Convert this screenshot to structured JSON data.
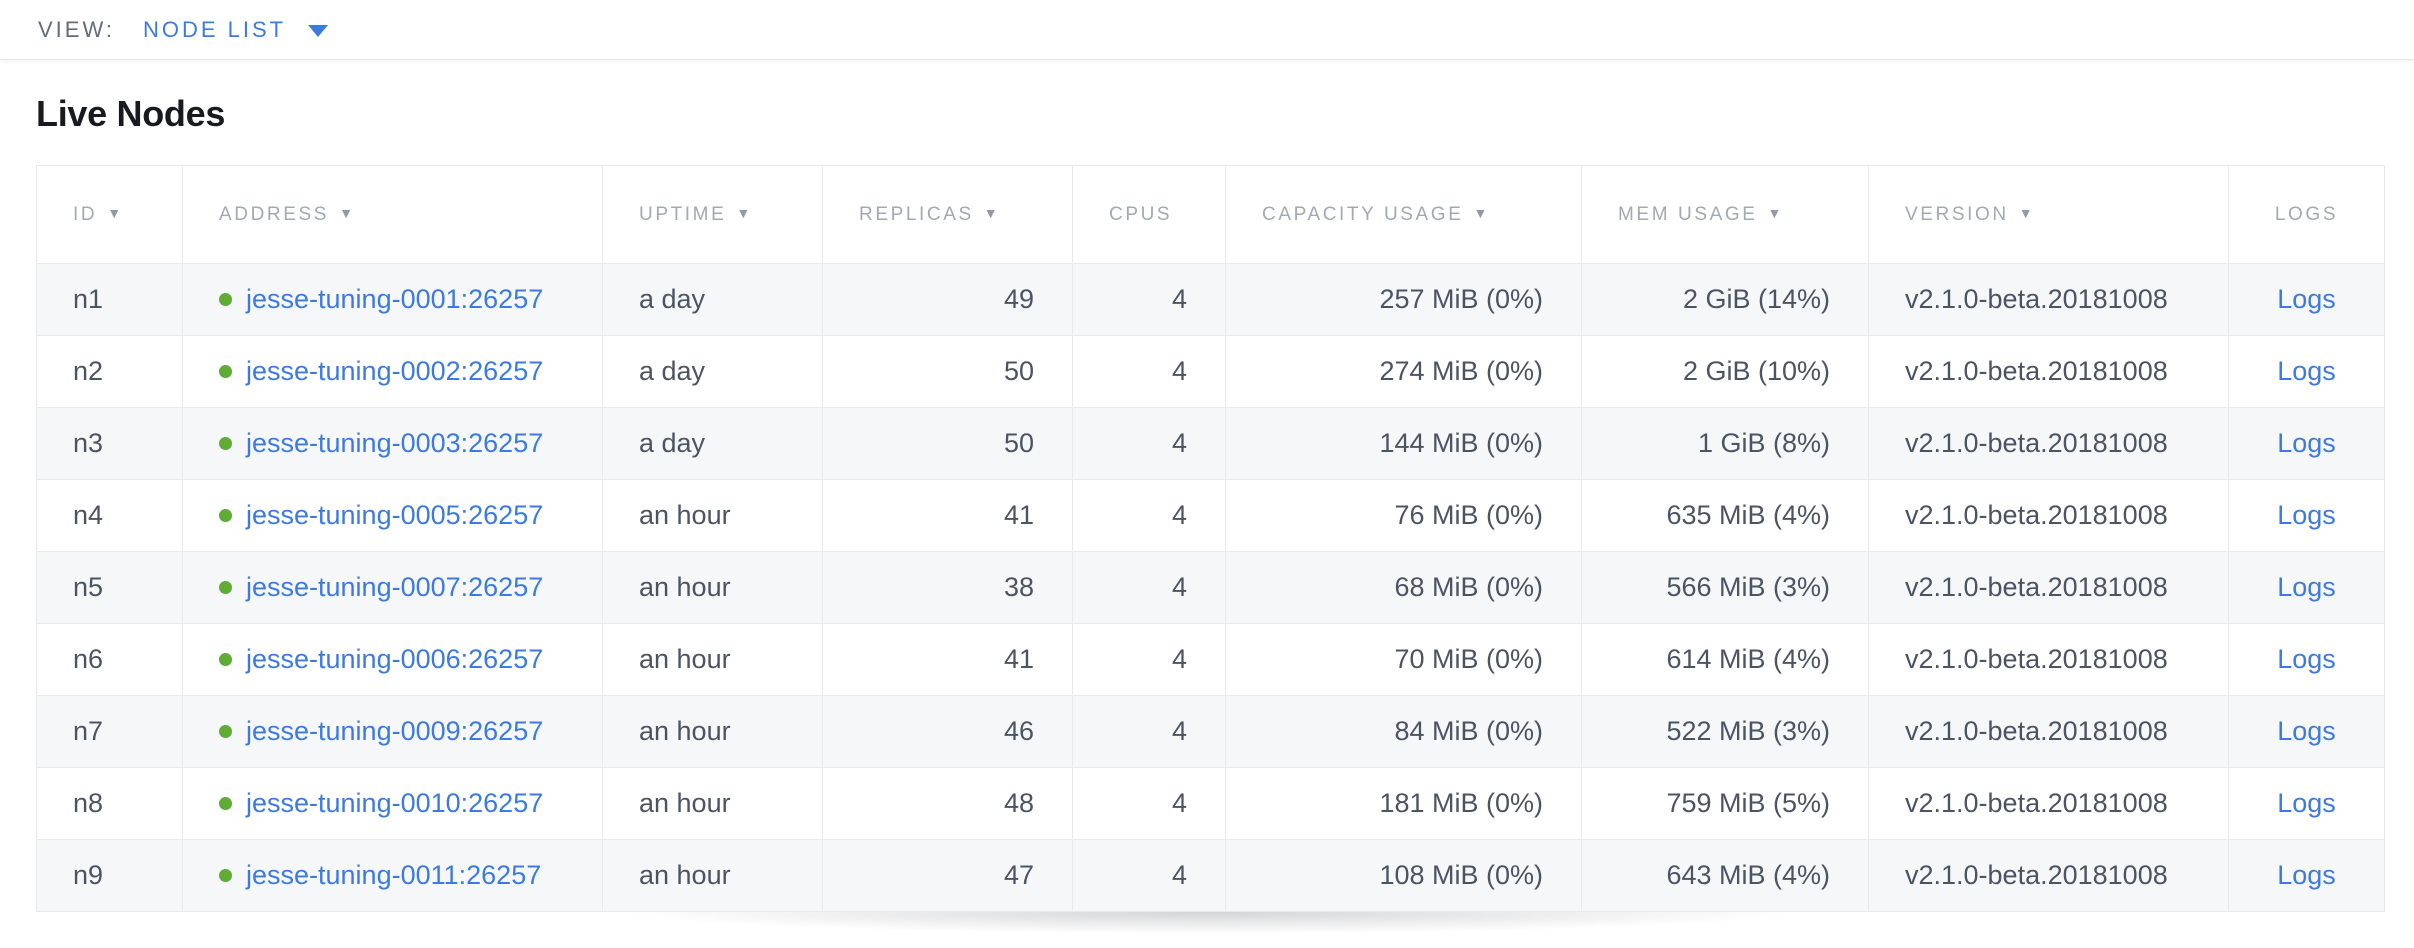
{
  "view_bar": {
    "label": "VIEW:",
    "selected": "NODE LIST"
  },
  "page": {
    "title": "Live Nodes"
  },
  "icons": {
    "sort_desc": "▼",
    "view_caret": "caret-down-icon",
    "node_status": "status-dot-icon"
  },
  "colors": {
    "accent_blue": "#3d7ae0",
    "link_blue": "#3d7ae0",
    "status_green": "#5eab36",
    "header_gray": "#a2a9b4",
    "cell_text": "#4c5464",
    "zebra_row": "#f6f7f8",
    "border": "#e9eaec"
  },
  "table": {
    "columns": [
      {
        "key": "id",
        "label": "ID",
        "sortable": true,
        "cell_align": "left"
      },
      {
        "key": "address",
        "label": "ADDRESS",
        "sortable": true,
        "cell_align": "left"
      },
      {
        "key": "uptime",
        "label": "UPTIME",
        "sortable": true,
        "cell_align": "left"
      },
      {
        "key": "replicas",
        "label": "REPLICAS",
        "sortable": true,
        "cell_align": "right"
      },
      {
        "key": "cpus",
        "label": "CPUS",
        "sortable": false,
        "cell_align": "right"
      },
      {
        "key": "capacity",
        "label": "CAPACITY USAGE",
        "sortable": true,
        "cell_align": "right"
      },
      {
        "key": "mem",
        "label": "MEM USAGE",
        "sortable": true,
        "cell_align": "right"
      },
      {
        "key": "version",
        "label": "VERSION",
        "sortable": true,
        "cell_align": "left"
      },
      {
        "key": "logs",
        "label": "LOGS",
        "sortable": false,
        "cell_align": "center"
      }
    ],
    "rows": [
      {
        "id": "n1",
        "address": "jesse-tuning-0001:26257",
        "uptime": "a day",
        "replicas": "49",
        "cpus": "4",
        "capacity": "257 MiB (0%)",
        "mem": "2 GiB (14%)",
        "version": "v2.1.0-beta.20181008",
        "logs": "Logs"
      },
      {
        "id": "n2",
        "address": "jesse-tuning-0002:26257",
        "uptime": "a day",
        "replicas": "50",
        "cpus": "4",
        "capacity": "274 MiB (0%)",
        "mem": "2 GiB (10%)",
        "version": "v2.1.0-beta.20181008",
        "logs": "Logs"
      },
      {
        "id": "n3",
        "address": "jesse-tuning-0003:26257",
        "uptime": "a day",
        "replicas": "50",
        "cpus": "4",
        "capacity": "144 MiB (0%)",
        "mem": "1 GiB (8%)",
        "version": "v2.1.0-beta.20181008",
        "logs": "Logs"
      },
      {
        "id": "n4",
        "address": "jesse-tuning-0005:26257",
        "uptime": "an hour",
        "replicas": "41",
        "cpus": "4",
        "capacity": "76 MiB (0%)",
        "mem": "635 MiB (4%)",
        "version": "v2.1.0-beta.20181008",
        "logs": "Logs"
      },
      {
        "id": "n5",
        "address": "jesse-tuning-0007:26257",
        "uptime": "an hour",
        "replicas": "38",
        "cpus": "4",
        "capacity": "68 MiB (0%)",
        "mem": "566 MiB (3%)",
        "version": "v2.1.0-beta.20181008",
        "logs": "Logs"
      },
      {
        "id": "n6",
        "address": "jesse-tuning-0006:26257",
        "uptime": "an hour",
        "replicas": "41",
        "cpus": "4",
        "capacity": "70 MiB (0%)",
        "mem": "614 MiB (4%)",
        "version": "v2.1.0-beta.20181008",
        "logs": "Logs"
      },
      {
        "id": "n7",
        "address": "jesse-tuning-0009:26257",
        "uptime": "an hour",
        "replicas": "46",
        "cpus": "4",
        "capacity": "84 MiB (0%)",
        "mem": "522 MiB (3%)",
        "version": "v2.1.0-beta.20181008",
        "logs": "Logs"
      },
      {
        "id": "n8",
        "address": "jesse-tuning-0010:26257",
        "uptime": "an hour",
        "replicas": "48",
        "cpus": "4",
        "capacity": "181 MiB (0%)",
        "mem": "759 MiB (5%)",
        "version": "v2.1.0-beta.20181008",
        "logs": "Logs"
      },
      {
        "id": "n9",
        "address": "jesse-tuning-0011:26257",
        "uptime": "an hour",
        "replicas": "47",
        "cpus": "4",
        "capacity": "108 MiB (0%)",
        "mem": "643 MiB (4%)",
        "version": "v2.1.0-beta.20181008",
        "logs": "Logs"
      }
    ]
  }
}
